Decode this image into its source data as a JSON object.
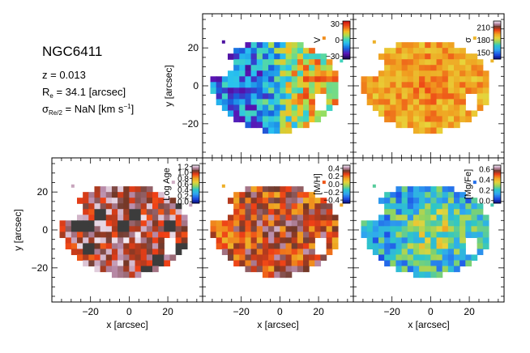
{
  "galaxy": {
    "name": "NGC6411",
    "z_label": "z = 0.013",
    "re_prefix": "R",
    "re_sub": "e",
    "re_suffix": " = 34.1 [arcsec]",
    "sigma_prefix": "σ",
    "sigma_sub": "Re/2",
    "sigma_mid": " = NaN [km s",
    "sigma_sup": "−1",
    "sigma_end": "]"
  },
  "chart_data": [
    {
      "type": "heatmap",
      "id": "velocity",
      "colorbar_label": "V",
      "xlim": [
        -40,
        38
      ],
      "ylim": [
        -38,
        38
      ],
      "colorbar_range": [
        -35,
        35
      ],
      "colorbar_ticks": [
        "30",
        "0",
        "−30"
      ],
      "colorbar_tick_values": [
        30,
        0,
        -30
      ],
      "colormap": "velocity",
      "pattern": "rotation",
      "dark_mask": false,
      "xlabel": "",
      "ylabel": "y [arcsec]",
      "xticks": [],
      "yticks": [
        {
          "v": 20,
          "label": "20"
        },
        {
          "v": 0,
          "label": "0"
        },
        {
          "v": -20,
          "label": "−20"
        }
      ]
    },
    {
      "type": "heatmap",
      "id": "sigma",
      "colorbar_label": "σ",
      "xlim": [
        -40,
        38
      ],
      "ylim": [
        -38,
        38
      ],
      "colorbar_range": [
        135,
        225
      ],
      "colorbar_ticks": [
        "210",
        "180",
        "150"
      ],
      "colorbar_tick_values": [
        210,
        180,
        150
      ],
      "colormap": "sauron",
      "pattern": "sigma",
      "dark_mask": false,
      "xlabel": "",
      "ylabel": "",
      "xticks": [],
      "yticks": []
    },
    {
      "type": "heatmap",
      "id": "logage",
      "colorbar_label": "Log Age",
      "xlim": [
        -40,
        38
      ],
      "ylim": [
        -38,
        38
      ],
      "colorbar_range": [
        -0.05,
        1.25
      ],
      "colorbar_ticks": [
        "1.2",
        "1.0",
        "0.8",
        "0.6",
        "0.4",
        "0.2",
        "0.0"
      ],
      "colorbar_tick_values": [
        1.2,
        1.0,
        0.8,
        0.6,
        0.4,
        0.2,
        0.0
      ],
      "colormap": "sauron",
      "pattern": "age",
      "dark_mask": true,
      "xlabel": "x [arcsec]",
      "ylabel": "y [arcsec]",
      "xticks": [
        {
          "v": -20,
          "label": "−20"
        },
        {
          "v": 0,
          "label": "0"
        },
        {
          "v": 20,
          "label": "20"
        }
      ],
      "yticks": [
        {
          "v": 20,
          "label": "20"
        },
        {
          "v": 0,
          "label": "0"
        },
        {
          "v": -20,
          "label": "−20"
        }
      ]
    },
    {
      "type": "heatmap",
      "id": "metallicity",
      "colorbar_label": "[M/H]",
      "xlim": [
        -40,
        38
      ],
      "ylim": [
        -38,
        38
      ],
      "colorbar_range": [
        -0.48,
        0.48
      ],
      "colorbar_ticks": [
        "0.4",
        "0.2",
        "0.0",
        "−0.2",
        "−0.4"
      ],
      "colorbar_tick_values": [
        0.4,
        0.2,
        0.0,
        -0.2,
        -0.4
      ],
      "colormap": "sauron",
      "pattern": "metal",
      "dark_mask": false,
      "xlabel": "x [arcsec]",
      "ylabel": "",
      "xticks": [
        {
          "v": -20,
          "label": "−20"
        },
        {
          "v": 0,
          "label": "0"
        },
        {
          "v": 20,
          "label": "20"
        }
      ],
      "yticks": []
    },
    {
      "type": "heatmap",
      "id": "alpha",
      "colorbar_label": "[Mg/Fe]",
      "xlim": [
        -40,
        38
      ],
      "ylim": [
        -38,
        38
      ],
      "colorbar_range": [
        -0.05,
        0.68
      ],
      "colorbar_ticks": [
        "0.6",
        "0.4",
        "0.2",
        "0.0"
      ],
      "colorbar_tick_values": [
        0.6,
        0.4,
        0.2,
        0.0
      ],
      "colormap": "sauron",
      "pattern": "alpha",
      "dark_mask": false,
      "xlabel": "x [arcsec]",
      "ylabel": "",
      "xticks": [
        {
          "v": -20,
          "label": "−20"
        },
        {
          "v": 0,
          "label": "0"
        },
        {
          "v": 20,
          "label": "20"
        }
      ],
      "yticks": []
    }
  ]
}
